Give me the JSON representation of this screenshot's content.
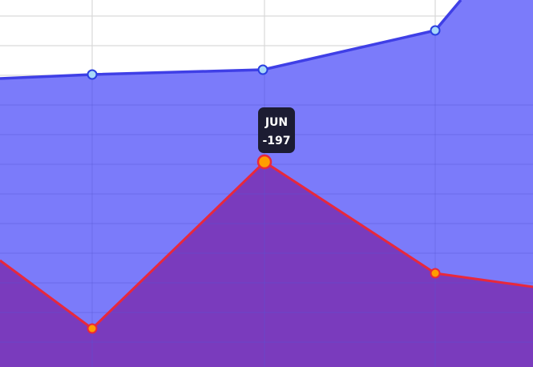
{
  "chart_data": {
    "type": "area",
    "tooltip": {
      "label": "JUN",
      "value": -197
    }
  }
}
